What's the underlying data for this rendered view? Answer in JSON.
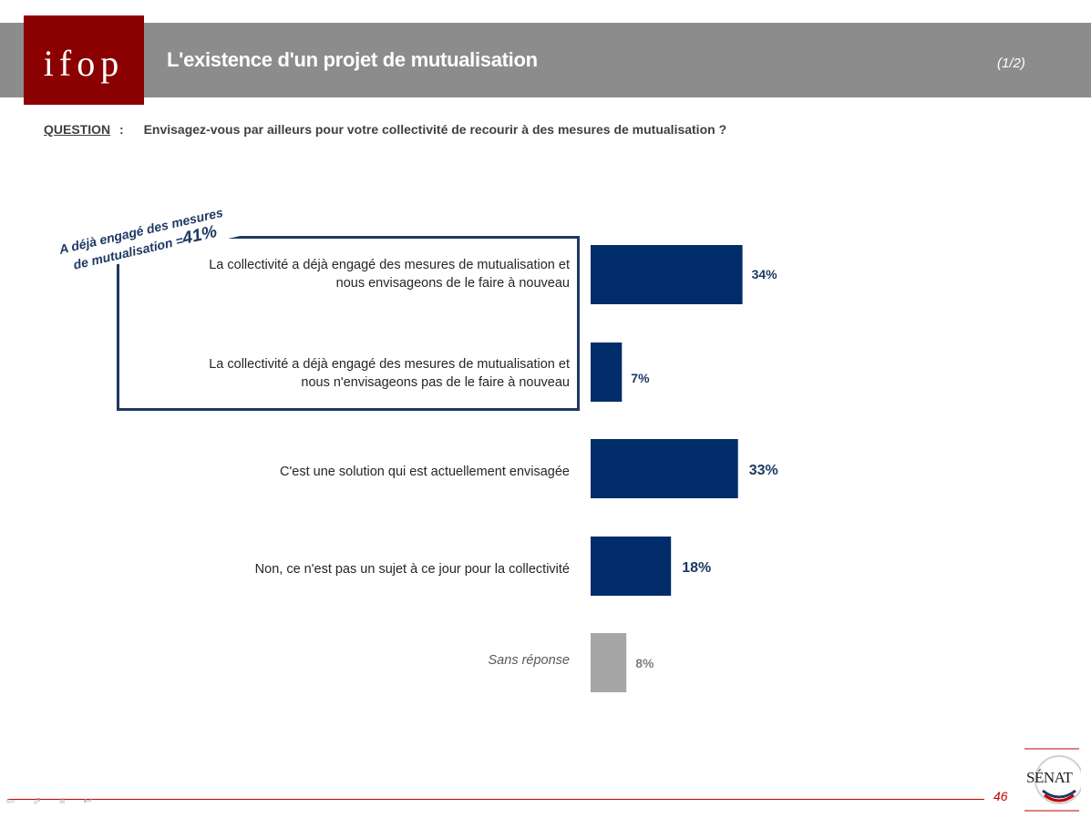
{
  "header": {
    "brand": "ifop",
    "title": "L'existence d'un projet de mutualisation",
    "page_part": "(1/2)"
  },
  "question": {
    "label": "QUESTION",
    "separator": ":",
    "text": "Envisagez-vous par ailleurs pour votre collectivité de recourir à des mesures de mutualisation ?"
  },
  "group": {
    "label_line1": "A déjà engagé des mesures",
    "label_line2_prefix": "de mutualisation =",
    "label_value": "41%"
  },
  "chart_data": {
    "type": "bar",
    "orientation": "horizontal",
    "categories": [
      "La collectivité a déjà engagé des mesures de mutualisation et nous envisageons de le faire à nouveau",
      "La collectivité a déjà engagé des mesures de mutualisation et nous n'envisageons pas de le faire à nouveau",
      "C'est une solution qui est actuellement envisagée",
      "Non, ce n'est pas un sujet à ce jour pour la collectivité",
      "Sans réponse"
    ],
    "category_lines": [
      [
        "La collectivité a déjà engagé des mesures de mutualisation et",
        "nous envisageons de le faire à nouveau"
      ],
      [
        "La collectivité a déjà engagé des mesures de mutualisation et",
        "nous n'envisageons pas de le faire à nouveau"
      ],
      [
        "C'est une solution qui est actuellement envisagée"
      ],
      [
        "Non, ce n'est pas un sujet à ce jour pour la collectivité"
      ],
      [
        "Sans réponse"
      ]
    ],
    "values": [
      34,
      7,
      33,
      18,
      8
    ],
    "value_labels": [
      "34%",
      "7%",
      "33%",
      "18%",
      "8%"
    ],
    "unit": "%",
    "colors": [
      "#002d6a",
      "#002d6a",
      "#002d6a",
      "#002d6a",
      "#a6a6a6"
    ],
    "label_colors": [
      "#1f3864",
      "#1f3864",
      "#1f3864",
      "#1f3864",
      "#7f7f7f"
    ],
    "xlim": [
      0,
      100
    ]
  },
  "footer": {
    "page_number": "46",
    "senat_logo": "SÉNAT"
  }
}
